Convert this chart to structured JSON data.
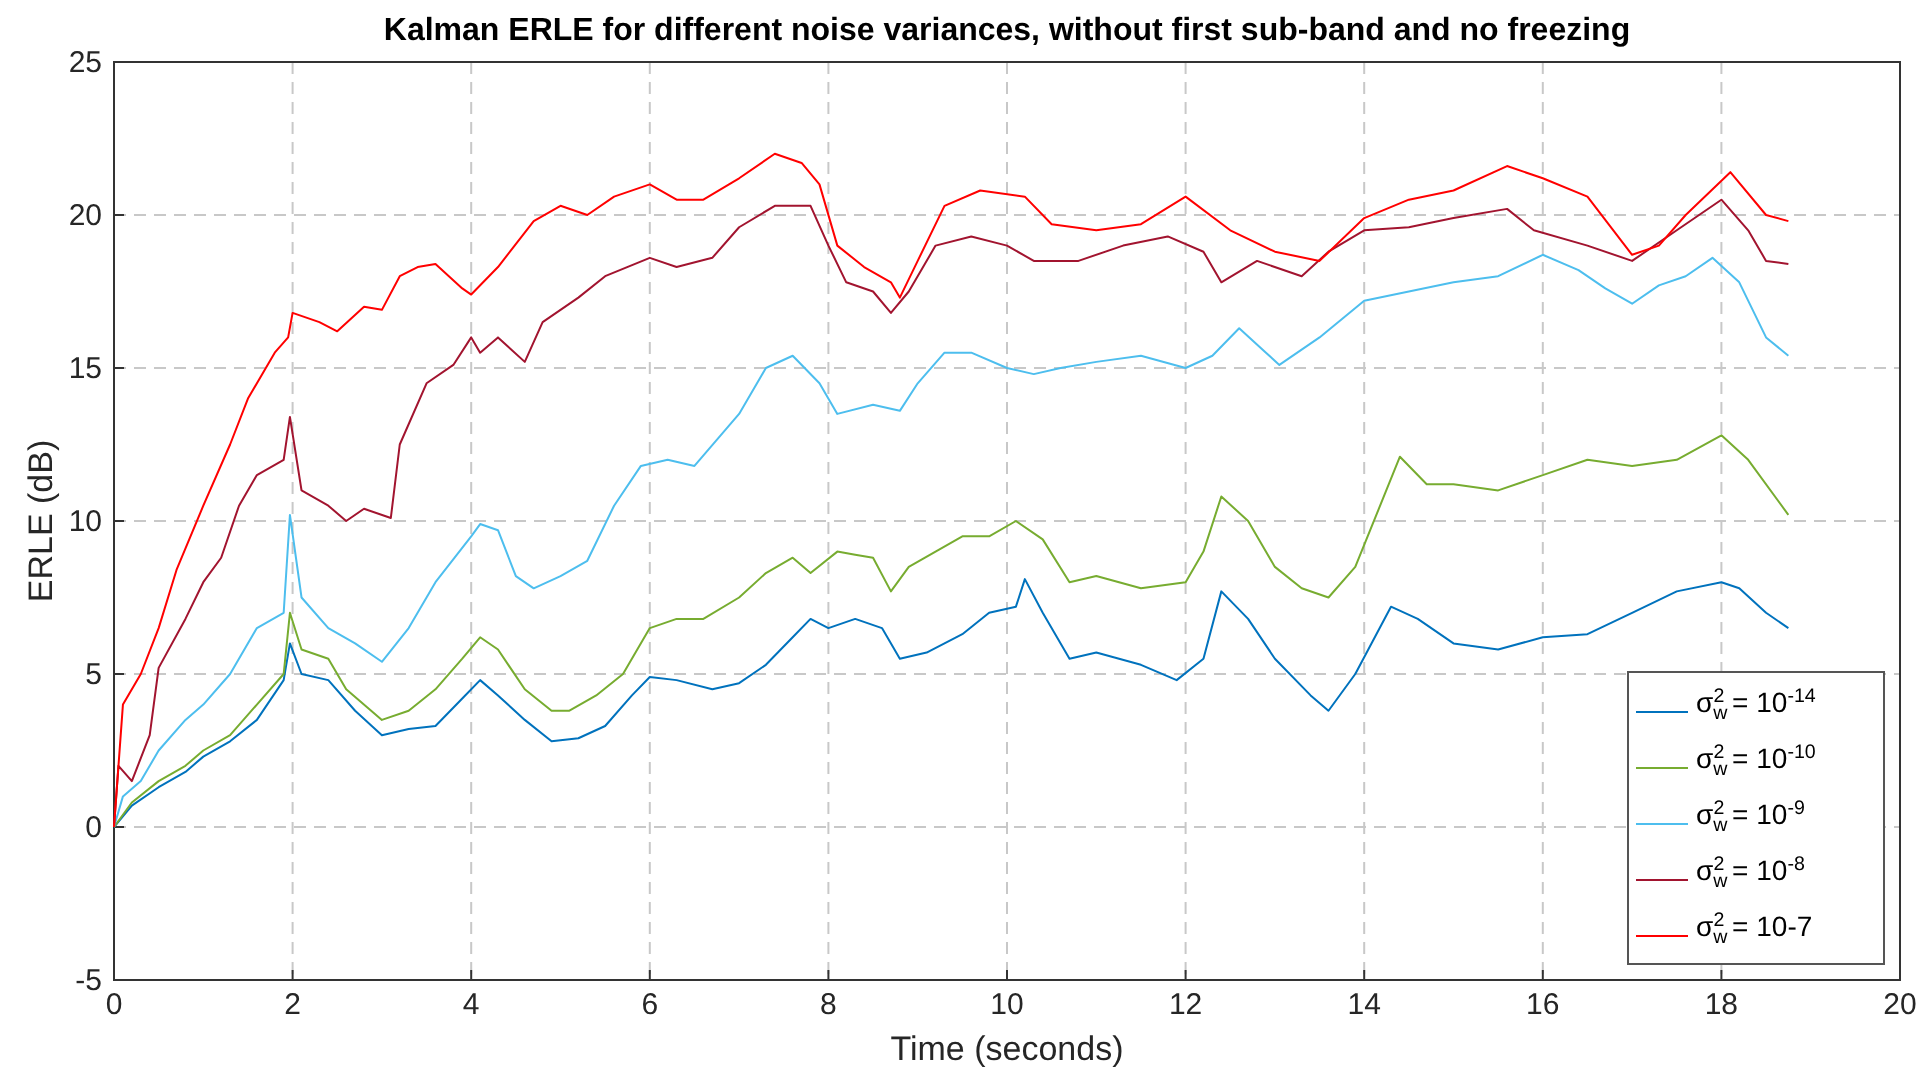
{
  "chart_data": {
    "type": "line",
    "title": "Kalman ERLE for different noise variances, without first sub-band and no freezing",
    "xlabel": "Time (seconds)",
    "ylabel": "ERLE (dB)",
    "xlim": [
      0,
      20
    ],
    "xticks": [
      0,
      2,
      4,
      6,
      8,
      10,
      12,
      14,
      16,
      18,
      20
    ],
    "ylim": [
      -5,
      25
    ],
    "yticks": [
      -5,
      0,
      5,
      10,
      15,
      20,
      25
    ],
    "grid": true,
    "legend": "bottom right",
    "line_style": "solid",
    "marker": "none",
    "series": [
      {
        "name": "σ$_{w}$$^{2}$ = 10$^{-14}$",
        "color": "#0072bd",
        "x": [
          0,
          0.2,
          0.5,
          0.8,
          1,
          1.3,
          1.6,
          1.9,
          1.97,
          2.1,
          2.4,
          2.7,
          3,
          3.3,
          3.6,
          3.9,
          4.1,
          4.3,
          4.6,
          4.9,
          5.2,
          5.5,
          5.8,
          6,
          6.3,
          6.7,
          7,
          7.3,
          7.6,
          7.8,
          8,
          8.3,
          8.6,
          8.8,
          9.1,
          9.5,
          9.8,
          10.1,
          10.2,
          10.4,
          10.7,
          11,
          11.5,
          11.9,
          12.2,
          12.4,
          12.7,
          13,
          13.4,
          13.6,
          13.9,
          14.3,
          14.6,
          15,
          15.5,
          16,
          16.5,
          17,
          17.5,
          18,
          18.2,
          18.5,
          18.75
        ],
        "values": [
          0,
          0.7,
          1.3,
          1.8,
          2.3,
          2.8,
          3.5,
          4.8,
          6,
          5,
          4.8,
          3.8,
          3,
          3.2,
          3.3,
          4.2,
          4.8,
          4.3,
          3.5,
          2.8,
          2.9,
          3.3,
          4.3,
          4.9,
          4.8,
          4.5,
          4.7,
          5.3,
          6.2,
          6.8,
          6.5,
          6.8,
          6.5,
          5.5,
          5.7,
          6.3,
          7,
          7.2,
          8.1,
          7,
          5.5,
          5.7,
          5.3,
          4.8,
          5.5,
          7.7,
          6.8,
          5.5,
          4.3,
          3.8,
          5,
          7.2,
          6.8,
          6,
          5.8,
          6.2,
          6.3,
          7,
          7.7,
          8,
          7.8,
          7,
          6.5
        ]
      },
      {
        "name": "σ$_{w}$$^{2}$ = 10$^{-10}$",
        "color": "#77ac30",
        "x": [
          0,
          0.2,
          0.5,
          0.8,
          1,
          1.3,
          1.6,
          1.9,
          1.97,
          2.1,
          2.4,
          2.6,
          3,
          3.3,
          3.6,
          3.9,
          4.1,
          4.3,
          4.6,
          4.9,
          5.1,
          5.4,
          5.7,
          6,
          6.3,
          6.6,
          7,
          7.3,
          7.6,
          7.8,
          8.1,
          8.3,
          8.5,
          8.7,
          8.9,
          9.2,
          9.5,
          9.8,
          10.1,
          10.4,
          10.7,
          11,
          11.5,
          12,
          12.2,
          12.4,
          12.7,
          13,
          13.3,
          13.6,
          13.9,
          14.4,
          14.7,
          15,
          15.5,
          16,
          16.5,
          17,
          17.5,
          18,
          18.3,
          18.75
        ],
        "values": [
          0,
          0.8,
          1.5,
          2,
          2.5,
          3,
          4,
          5,
          7,
          5.8,
          5.5,
          4.5,
          3.5,
          3.8,
          4.5,
          5.5,
          6.2,
          5.8,
          4.5,
          3.8,
          3.8,
          4.3,
          5,
          6.5,
          6.8,
          6.8,
          7.5,
          8.3,
          8.8,
          8.3,
          9,
          8.9,
          8.8,
          7.7,
          8.5,
          9,
          9.5,
          9.5,
          10,
          9.4,
          8,
          8.2,
          7.8,
          8,
          9,
          10.8,
          10,
          8.5,
          7.8,
          7.5,
          8.5,
          12.1,
          11.2,
          11.2,
          11,
          11.5,
          12,
          11.8,
          12,
          12.8,
          12,
          10.2
        ]
      },
      {
        "name": "σ$_{w}$$^{2}$ = 10$^{-9}$",
        "color": "#4dbeee",
        "x": [
          0,
          0.1,
          0.3,
          0.5,
          0.8,
          1,
          1.3,
          1.6,
          1.9,
          1.97,
          2.1,
          2.4,
          2.7,
          3,
          3.3,
          3.6,
          4,
          4.1,
          4.3,
          4.5,
          4.7,
          5,
          5.3,
          5.6,
          5.9,
          6.2,
          6.5,
          7,
          7.3,
          7.6,
          7.9,
          8.1,
          8.5,
          8.8,
          9,
          9.3,
          9.6,
          10,
          10.3,
          10.6,
          11,
          11.5,
          12,
          12.3,
          12.6,
          12.9,
          13.05,
          13.5,
          14,
          14.5,
          15,
          15.5,
          16,
          16.4,
          16.7,
          17,
          17.3,
          17.6,
          17.9,
          18.2,
          18.5,
          18.75
        ],
        "values": [
          0,
          1,
          1.5,
          2.5,
          3.5,
          4,
          5,
          6.5,
          7,
          10.2,
          7.5,
          6.5,
          6,
          5.4,
          6.5,
          8,
          9.5,
          9.9,
          9.7,
          8.2,
          7.8,
          8.2,
          8.7,
          10.5,
          11.8,
          12,
          11.8,
          13.5,
          15,
          15.4,
          14.5,
          13.5,
          13.8,
          13.6,
          14.5,
          15.5,
          15.5,
          15,
          14.8,
          15,
          15.2,
          15.4,
          15,
          15.4,
          16.3,
          15.5,
          15.1,
          16,
          17.2,
          17.5,
          17.8,
          18,
          18.7,
          18.2,
          17.6,
          17.1,
          17.7,
          18,
          18.6,
          17.8,
          16,
          15.4
        ]
      },
      {
        "name": "σ$_{w}$$^{2}$ = 10$^{-8}$",
        "color": "#a2142f",
        "x": [
          0,
          0.05,
          0.2,
          0.4,
          0.5,
          0.8,
          1,
          1.2,
          1.4,
          1.6,
          1.9,
          1.97,
          2.1,
          2.4,
          2.6,
          2.8,
          3.1,
          3.2,
          3.5,
          3.8,
          4,
          4.1,
          4.3,
          4.6,
          4.8,
          5.2,
          5.5,
          6,
          6.3,
          6.7,
          7,
          7.4,
          7.8,
          8,
          8.2,
          8.5,
          8.7,
          8.9,
          9.2,
          9.6,
          10,
          10.3,
          10.8,
          11.3,
          11.8,
          12.2,
          12.4,
          12.8,
          13.3,
          13.6,
          14,
          14.5,
          15,
          15.6,
          15.9,
          16.5,
          17,
          17.5,
          18,
          18.3,
          18.5,
          18.75
        ],
        "values": [
          0,
          2,
          1.5,
          3,
          5.2,
          6.8,
          8,
          8.8,
          10.5,
          11.5,
          12,
          13.4,
          11,
          10.5,
          10,
          10.4,
          10.1,
          12.5,
          14.5,
          15.1,
          16,
          15.5,
          16,
          15.2,
          16.5,
          17.3,
          18,
          18.6,
          18.3,
          18.6,
          19.6,
          20.3,
          20.3,
          19,
          17.8,
          17.5,
          16.8,
          17.5,
          19,
          19.3,
          19,
          18.5,
          18.5,
          19,
          19.3,
          18.8,
          17.8,
          18.5,
          18,
          18.8,
          19.5,
          19.6,
          19.9,
          20.2,
          19.5,
          19,
          18.5,
          19.5,
          20.5,
          19.5,
          18.5,
          18.4
        ]
      },
      {
        "name": "σ$_{w}$$^{2}$ = 10-7",
        "color": "#ff0000",
        "x": [
          0,
          0.05,
          0.1,
          0.3,
          0.5,
          0.7,
          1,
          1.3,
          1.5,
          1.8,
          1.95,
          2,
          2.3,
          2.5,
          2.8,
          3,
          3.2,
          3.4,
          3.6,
          3.9,
          4,
          4.3,
          4.7,
          5,
          5.3,
          5.6,
          6,
          6.3,
          6.6,
          7,
          7.4,
          7.7,
          7.9,
          8.1,
          8.4,
          8.7,
          8.8,
          9,
          9.3,
          9.7,
          10.2,
          10.5,
          11,
          11.5,
          12,
          12.5,
          13,
          13.5,
          14,
          14.5,
          15,
          15.6,
          16,
          16.5,
          17,
          17.3,
          17.6,
          18.1,
          18.5,
          18.75
        ],
        "values": [
          0,
          2,
          4,
          5,
          6.5,
          8.4,
          10.5,
          12.5,
          14,
          15.5,
          16,
          16.8,
          16.5,
          16.2,
          17,
          16.9,
          18,
          18.3,
          18.4,
          17.6,
          17.4,
          18.3,
          19.8,
          20.3,
          20,
          20.6,
          21,
          20.5,
          20.5,
          21.2,
          22,
          21.7,
          21,
          19,
          18.3,
          17.8,
          17.3,
          18.5,
          20.3,
          20.8,
          20.6,
          19.7,
          19.5,
          19.7,
          20.6,
          19.5,
          18.8,
          18.5,
          19.9,
          20.5,
          20.8,
          21.6,
          21.2,
          20.6,
          18.7,
          19,
          20,
          21.4,
          20,
          19.8
        ]
      }
    ]
  }
}
